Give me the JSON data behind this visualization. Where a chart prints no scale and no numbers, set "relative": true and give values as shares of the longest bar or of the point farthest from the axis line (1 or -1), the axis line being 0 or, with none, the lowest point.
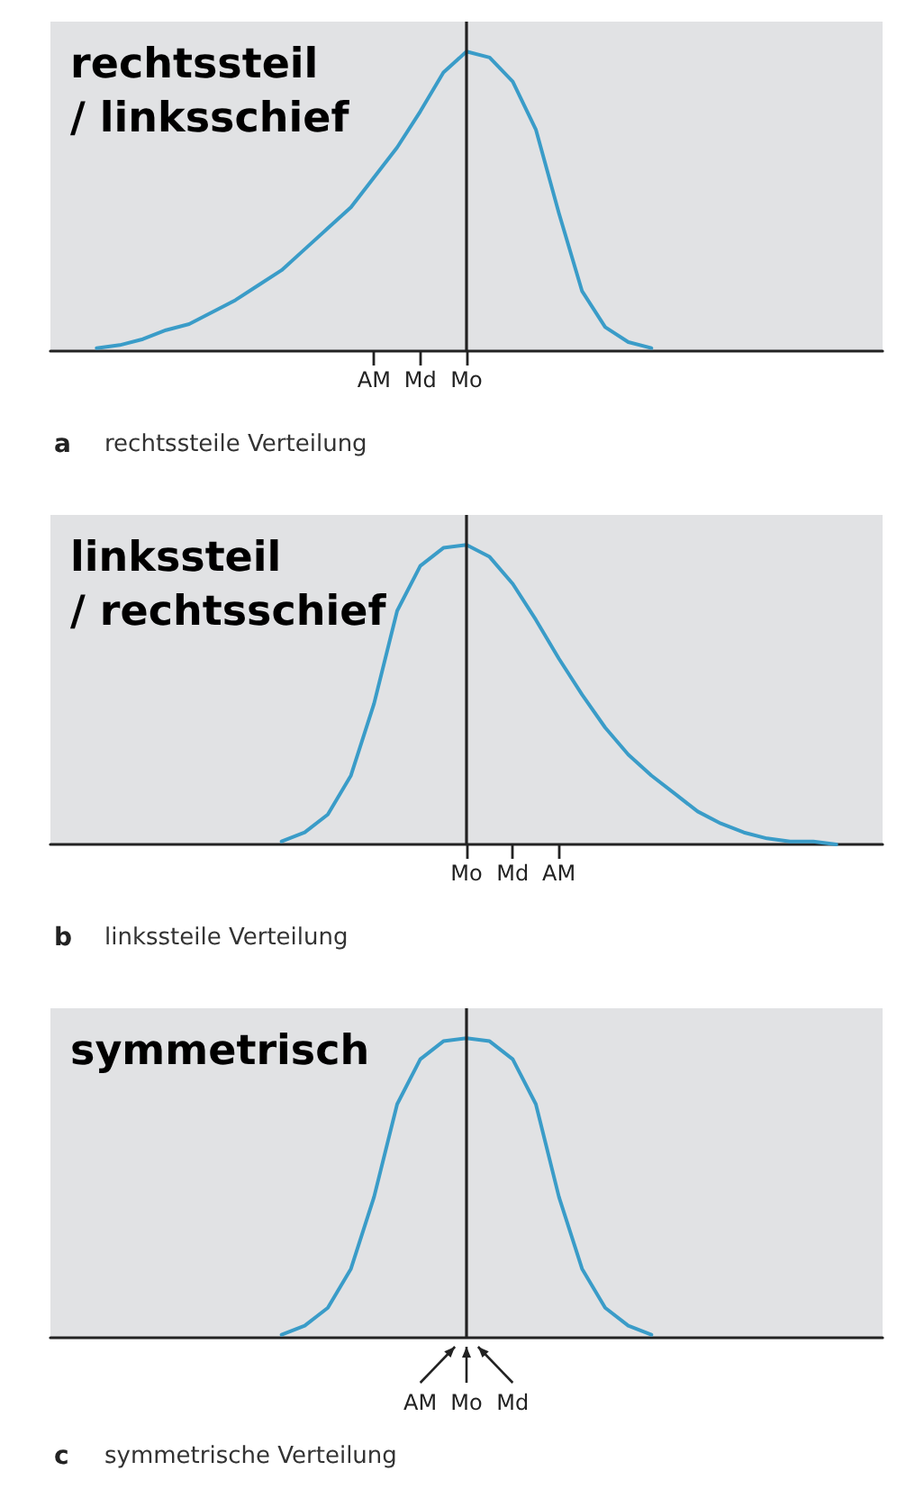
{
  "chart_data": [
    {
      "type": "line",
      "title": "rechtssteil\n/ linksschief",
      "relative": true,
      "color": "#3a9cc8",
      "marker": "none",
      "grid": false,
      "categories": [
        null,
        null,
        null,
        null,
        null,
        null,
        null,
        null,
        null,
        null,
        null,
        null,
        null,
        null,
        "AM",
        null,
        "Md",
        null,
        "Mo",
        null,
        null,
        null,
        null,
        null,
        null,
        null,
        null,
        null,
        null,
        null,
        null,
        null,
        null,
        null,
        null,
        null,
        null
      ],
      "values": [
        null,
        null,
        0.01,
        0.02,
        0.04,
        0.07,
        0.09,
        0.13,
        0.17,
        0.22,
        0.27,
        0.34,
        0.41,
        0.48,
        0.58,
        0.68,
        0.8,
        0.93,
        1,
        0.98,
        0.9,
        0.74,
        0.46,
        0.2,
        0.08,
        0.03,
        0.01,
        null,
        null,
        null,
        null,
        null,
        null,
        null,
        null,
        null,
        null
      ],
      "ref_lines": [
        {
          "axis": "x",
          "value": "Mo"
        }
      ],
      "annotations": [
        "a rechtssteile Verteilung"
      ]
    },
    {
      "type": "line",
      "title": "linkssteil\n/ rechtsschief",
      "relative": true,
      "color": "#3a9cc8",
      "marker": "none",
      "grid": false,
      "categories": [
        null,
        null,
        null,
        null,
        null,
        null,
        null,
        null,
        null,
        null,
        null,
        null,
        null,
        null,
        null,
        null,
        null,
        null,
        "Mo",
        null,
        "Md",
        null,
        "AM",
        null,
        null,
        null,
        null,
        null,
        null,
        null,
        null,
        null,
        null,
        null,
        null,
        null,
        null
      ],
      "values": [
        null,
        null,
        null,
        null,
        null,
        null,
        null,
        null,
        null,
        null,
        0.01,
        0.04,
        0.1,
        0.23,
        0.47,
        0.78,
        0.93,
        0.99,
        1,
        0.96,
        0.87,
        0.75,
        0.62,
        0.5,
        0.39,
        0.3,
        0.23,
        0.17,
        0.11,
        0.07,
        0.04,
        0.02,
        0.01,
        0.01,
        0,
        null,
        null
      ],
      "ref_lines": [
        {
          "axis": "x",
          "value": "Mo"
        }
      ],
      "annotations": [
        "b linkssteile Verteilung"
      ]
    },
    {
      "type": "line",
      "title": "symmetrisch",
      "relative": true,
      "color": "#3a9cc8",
      "marker": "none",
      "grid": false,
      "categories": [
        null,
        null,
        null,
        null,
        null,
        null,
        null,
        null,
        null,
        null,
        null,
        null,
        null,
        null,
        null,
        null,
        "AM",
        null,
        "Mo",
        null,
        "Md",
        null,
        null,
        null,
        null,
        null,
        null,
        null,
        null,
        null,
        null,
        null,
        null,
        null,
        null,
        null,
        null
      ],
      "values": [
        null,
        null,
        null,
        null,
        null,
        null,
        null,
        null,
        null,
        null,
        0.01,
        0.04,
        0.1,
        0.23,
        0.47,
        0.78,
        0.93,
        0.99,
        1,
        0.99,
        0.93,
        0.78,
        0.47,
        0.23,
        0.1,
        0.04,
        0.01,
        null,
        null,
        null,
        null,
        null,
        null,
        null,
        null,
        null,
        null
      ],
      "ref_lines": [
        {
          "axis": "x",
          "value": "Mo"
        }
      ],
      "annotations": [
        "c symmetrische Verteilung"
      ]
    }
  ]
}
